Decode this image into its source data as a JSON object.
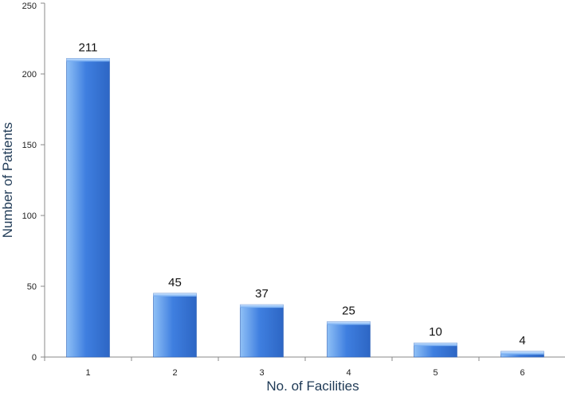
{
  "chart_data": {
    "type": "bar",
    "title": "",
    "xlabel": "No. of Facilities",
    "ylabel": "Number of Patients",
    "categories": [
      "1",
      "2",
      "3",
      "4",
      "5",
      "6"
    ],
    "values": [
      211,
      45,
      37,
      25,
      10,
      4
    ],
    "data_labels": [
      "211",
      "45",
      "37",
      "25",
      "10",
      "4"
    ],
    "ylim": [
      0,
      250
    ],
    "yticks": [
      0,
      50,
      100,
      150,
      200,
      250
    ],
    "ytick_labels": [
      "0",
      "50",
      "100",
      "150",
      "200",
      "250"
    ],
    "grid": false,
    "legend": "none",
    "bar_color": "#3f7fe0",
    "bar_color_light": "#8fc0f6",
    "bar_color_dark": "#2d66c4"
  }
}
